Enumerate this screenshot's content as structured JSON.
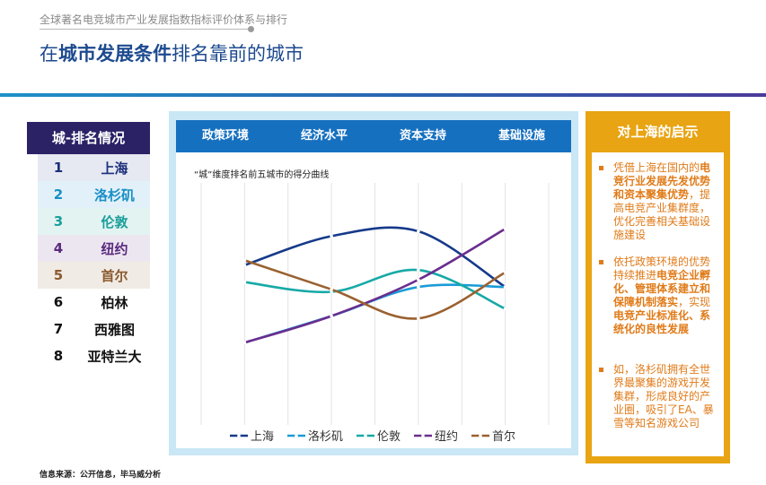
{
  "header": {
    "subtitle": "全球著名电竞城市产业发展指数指标评价体系与排行",
    "title_pre": "在",
    "title_bold": "城市发展条件",
    "title_post": "排名靠前的城市"
  },
  "ranking": {
    "heading": "城-排名情况",
    "rows": [
      {
        "rank": "1",
        "city": "上海",
        "color": "#1b2f7a"
      },
      {
        "rank": "2",
        "city": "洛杉矶",
        "color": "#1a8ec6"
      },
      {
        "rank": "3",
        "city": "伦敦",
        "color": "#1a9e9a"
      },
      {
        "rank": "4",
        "city": "纽约",
        "color": "#5a2a7e"
      },
      {
        "rank": "5",
        "city": "首尔",
        "color": "#8a5a2e"
      },
      {
        "rank": "6",
        "city": "柏林",
        "color": "#111111"
      },
      {
        "rank": "7",
        "city": "西雅图",
        "color": "#111111"
      },
      {
        "rank": "8",
        "city": "亚特兰大",
        "color": "#111111"
      }
    ]
  },
  "chart_panel": {
    "tabs": [
      "政策环境",
      "经济水平",
      "资本支持",
      "基础设施"
    ]
  },
  "chart_data": {
    "type": "line",
    "title": "“城”维度排名前五城市的得分曲线",
    "categories": [
      "政策环境",
      "经济水平",
      "资本支持",
      "基础设施"
    ],
    "ylim": [
      0,
      100
    ],
    "grid": true,
    "legend_position": "bottom",
    "series": [
      {
        "name": "上海",
        "color": "#163a8a",
        "values": [
          66,
          78,
          80,
          57
        ]
      },
      {
        "name": "洛杉矶",
        "color": "#1a9bd7",
        "values": [
          34,
          45,
          57,
          57
        ]
      },
      {
        "name": "伦敦",
        "color": "#17a9a6",
        "values": [
          59,
          55,
          64,
          48
        ]
      },
      {
        "name": "纽约",
        "color": "#6a2d8f",
        "values": [
          34,
          45,
          60,
          81
        ]
      },
      {
        "name": "首尔",
        "color": "#9a6130",
        "values": [
          68,
          56,
          44,
          63
        ]
      }
    ]
  },
  "insights": {
    "heading": "对上海的启示",
    "items": [
      {
        "pre": "凭借上海在国内的",
        "bold": "电竞行业发展先发优势和资本聚集优势",
        "post": "，提高电竞产业集群度，优化完善相关基础设施建设"
      },
      {
        "pre": "依托政策环境的优势持续推进",
        "bold": "电竞企业孵化、管理体系建立和保障机制落实",
        "mid": "，实现",
        "bold2": "电竞产业标准化、系统化的良性发展",
        "post": ""
      },
      {
        "pre": "如，洛杉矶拥有全世界最聚集的游戏开发集群，形成良好的产业圈，吸引了EA、暴雪等知名游戏公司",
        "bold": "",
        "post": ""
      }
    ]
  },
  "source": "信息来源：公开信息，毕马威分析"
}
